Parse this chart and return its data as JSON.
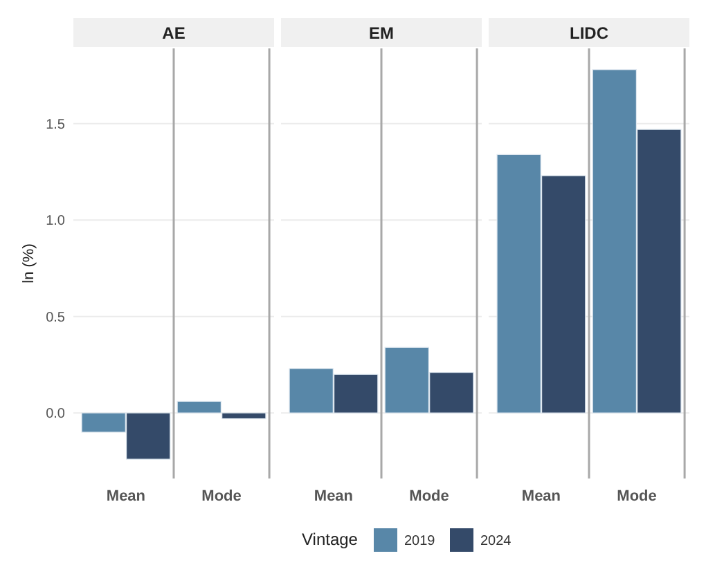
{
  "chart_data": [
    {
      "type": "bar",
      "title": "AE",
      "ylabel": "ln (%)",
      "legend_title": "Vintage",
      "legend": "bottom",
      "grid": "y",
      "categories": [
        "Mean",
        "Mode"
      ],
      "ylim": [
        -0.34,
        1.89
      ],
      "yticks": [
        {
          "value": 0,
          "label": "0.0"
        },
        0.5,
        {
          "value": 1,
          "label": "1.0"
        },
        1.5
      ],
      "series": [
        {
          "name": "2019",
          "color": "#5887a8",
          "values": [
            -0.1,
            0.06
          ]
        },
        {
          "name": "2024",
          "color": "#344a69",
          "values": [
            -0.24,
            -0.03
          ]
        }
      ]
    },
    {
      "type": "bar",
      "title": "EM",
      "grid": "y",
      "tick_labels": "x",
      "categories": [
        "Mean",
        "Mode"
      ],
      "ylim": [
        -0.34,
        1.89
      ],
      "series": [
        {
          "color": "#5887a8",
          "values": [
            0.23,
            0.34
          ]
        },
        {
          "color": "#344a69",
          "values": [
            0.2,
            0.21
          ]
        }
      ]
    },
    {
      "type": "bar",
      "title": "LIDC",
      "grid": "y",
      "tick_labels": "x",
      "categories": [
        "Mean",
        "Mode"
      ],
      "ylim": [
        -0.34,
        1.89
      ],
      "series": [
        {
          "color": "#5887a8",
          "values": [
            1.34,
            1.78
          ]
        },
        {
          "color": "#344a69",
          "values": [
            1.23,
            1.47
          ]
        }
      ]
    }
  ]
}
